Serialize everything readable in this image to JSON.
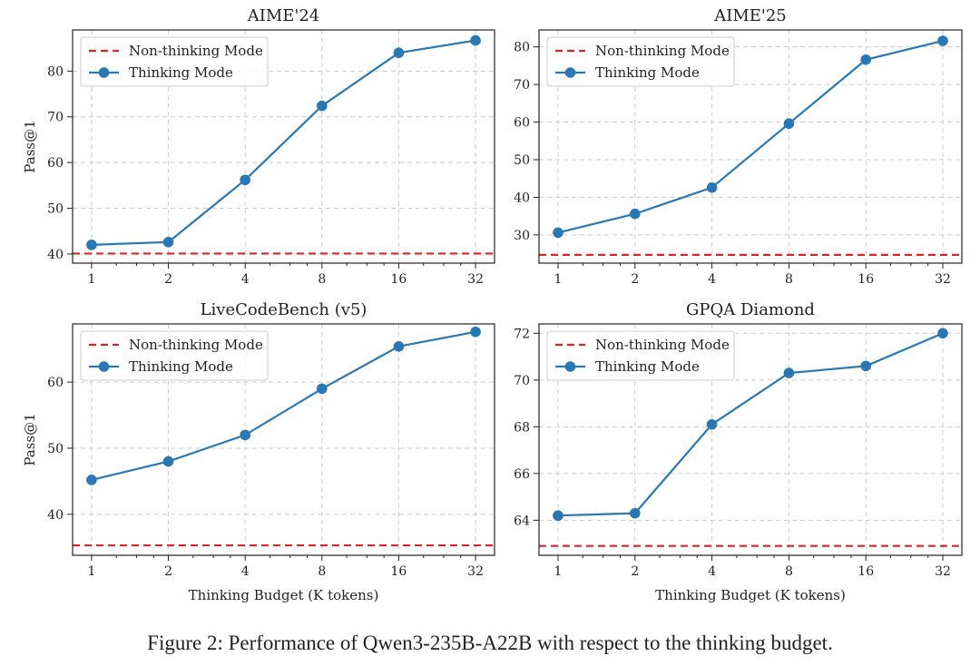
{
  "figure_caption": "Figure 2: Performance of Qwen3-235B-A22B with respect to the thinking budget.",
  "colors": {
    "thinking": "#2a78b3",
    "nonthinking": "#d62728",
    "grid": "#cccccc"
  },
  "chart_data": [
    {
      "type": "line",
      "title": "AIME'24",
      "xlabel": "",
      "ylabel": "Pass@1",
      "x_scale": "log2",
      "x": [
        1,
        2,
        4,
        8,
        16,
        32
      ],
      "xticks": [
        "1",
        "2",
        "4",
        "8",
        "16",
        "32"
      ],
      "ylim": [
        38,
        89
      ],
      "yticks": [
        40,
        50,
        60,
        70,
        80
      ],
      "grid": true,
      "legend": "top-left",
      "series": [
        {
          "name": "Non-thinking Mode",
          "style": "dashed",
          "constant": 40.1
        },
        {
          "name": "Thinking Mode",
          "style": "line-marker",
          "values": [
            42.0,
            42.6,
            56.2,
            72.4,
            84.0,
            86.7
          ]
        }
      ]
    },
    {
      "type": "line",
      "title": "AIME'25",
      "xlabel": "",
      "ylabel": "",
      "x_scale": "log2",
      "x": [
        1,
        2,
        4,
        8,
        16,
        32
      ],
      "xticks": [
        "1",
        "2",
        "4",
        "8",
        "16",
        "32"
      ],
      "ylim": [
        22.5,
        84.5
      ],
      "yticks": [
        30,
        40,
        50,
        60,
        70,
        80
      ],
      "grid": true,
      "legend": "top-left",
      "series": [
        {
          "name": "Non-thinking Mode",
          "style": "dashed",
          "constant": 24.7
        },
        {
          "name": "Thinking Mode",
          "style": "line-marker",
          "values": [
            30.6,
            35.6,
            42.6,
            59.6,
            76.6,
            81.6
          ]
        }
      ]
    },
    {
      "type": "line",
      "title": "LiveCodeBench (v5)",
      "xlabel": "Thinking Budget (K tokens)",
      "ylabel": "Pass@1",
      "x_scale": "log2",
      "x": [
        1,
        2,
        4,
        8,
        16,
        32
      ],
      "xticks": [
        "1",
        "2",
        "4",
        "8",
        "16",
        "32"
      ],
      "ylim": [
        33.8,
        68.8
      ],
      "yticks": [
        40,
        50,
        60
      ],
      "grid": true,
      "legend": "top-left",
      "series": [
        {
          "name": "Non-thinking Mode",
          "style": "dashed",
          "constant": 35.3
        },
        {
          "name": "Thinking Mode",
          "style": "line-marker",
          "values": [
            45.2,
            48.0,
            52.0,
            59.0,
            65.4,
            67.6
          ]
        }
      ]
    },
    {
      "type": "line",
      "title": "GPQA Diamond",
      "xlabel": "Thinking Budget (K tokens)",
      "ylabel": "",
      "x_scale": "log2",
      "x": [
        1,
        2,
        4,
        8,
        16,
        32
      ],
      "xticks": [
        "1",
        "2",
        "4",
        "8",
        "16",
        "32"
      ],
      "ylim": [
        62.5,
        72.4
      ],
      "yticks": [
        64,
        66,
        68,
        70,
        72
      ],
      "grid": true,
      "legend": "top-left",
      "series": [
        {
          "name": "Non-thinking Mode",
          "style": "dashed",
          "constant": 62.9
        },
        {
          "name": "Thinking Mode",
          "style": "line-marker",
          "values": [
            64.2,
            64.3,
            68.1,
            70.3,
            70.6,
            72.0
          ]
        }
      ]
    }
  ]
}
